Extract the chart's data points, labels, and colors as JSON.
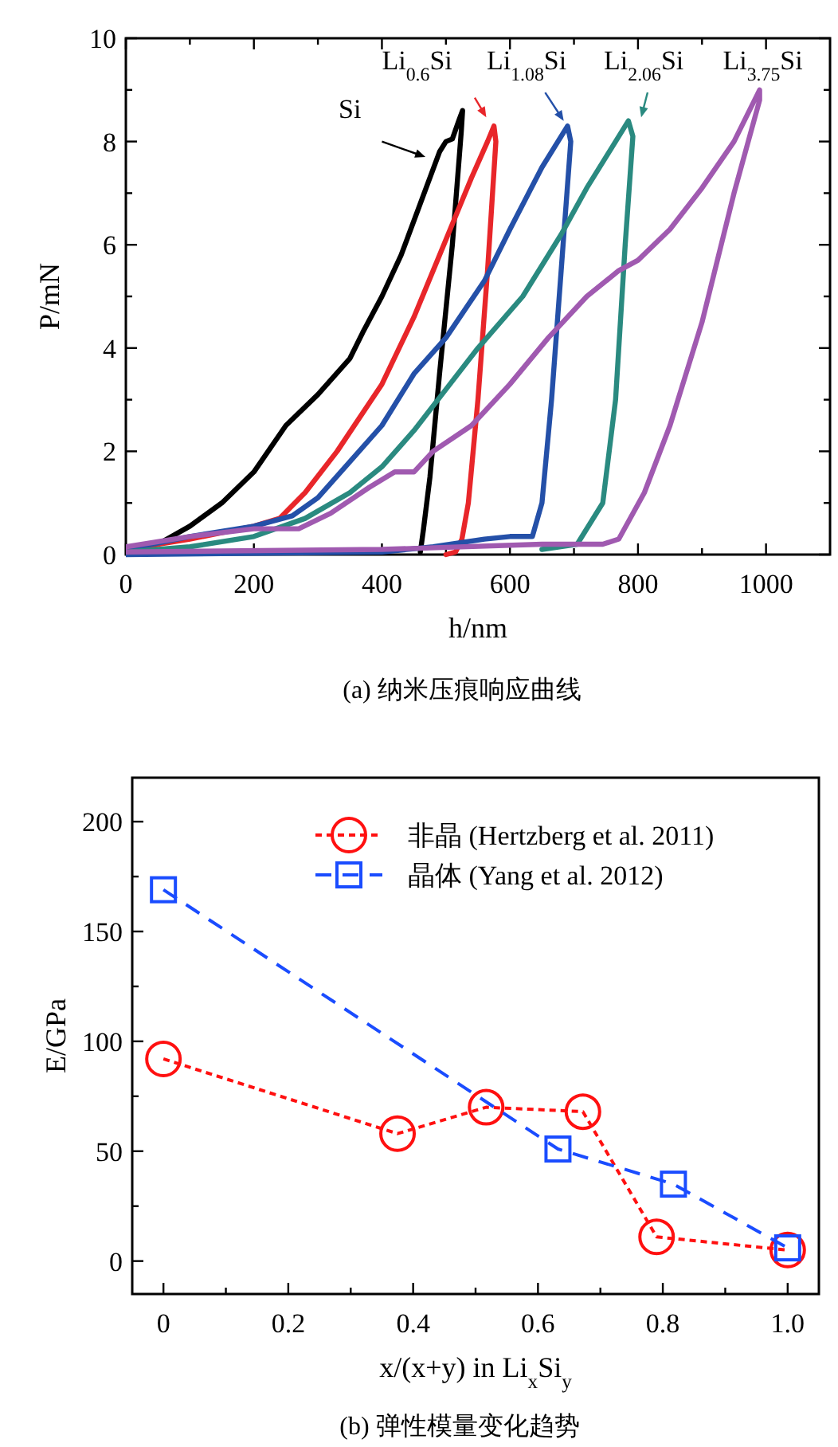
{
  "chart_data": [
    {
      "type": "line",
      "xlabel": "h/nm",
      "ylabel": "P/mN",
      "xlim": [
        0,
        1100
      ],
      "ylim": [
        0,
        10
      ],
      "xticks": [
        0,
        {
          "value": 100,
          "label": null
        },
        200,
        {
          "value": 300,
          "label": null
        },
        400,
        {
          "value": 500,
          "label": null
        },
        600,
        {
          "value": 700,
          "label": null
        },
        800,
        {
          "value": 900,
          "label": null
        },
        1000
      ],
      "yticks": [
        0,
        {
          "value": 1,
          "label": null
        },
        2,
        {
          "value": 3,
          "label": null
        },
        4,
        {
          "value": 5,
          "label": null
        },
        6,
        {
          "value": 7,
          "label": null
        },
        8,
        {
          "value": 9,
          "label": null
        },
        10
      ],
      "marker": "none",
      "line_style": "solid",
      "annotations": [
        "Si",
        "Li$_{0.6}$Si",
        "Li$_{1.08}$Si",
        "Li$_{2.06}$Si",
        "Li$_{3.75}$Si",
        "(a) 纳米压痕响应曲线"
      ],
      "series": [
        {
          "color": "#000000",
          "x": [
            0,
            50,
            100,
            150,
            200,
            250,
            300,
            350,
            370,
            400,
            430,
            460,
            490,
            500,
            510,
            520,
            526,
            524,
            510,
            490,
            475,
            465,
            460
          ],
          "values": [
            0.1,
            0.2,
            0.55,
            1.0,
            1.6,
            2.5,
            3.1,
            3.8,
            4.3,
            5.0,
            5.8,
            6.8,
            7.8,
            8.0,
            8.05,
            8.4,
            8.6,
            8.2,
            6.0,
            3.5,
            1.5,
            0.5,
            0.05
          ]
        },
        {
          "color": "#e8262a",
          "x": [
            0,
            100,
            200,
            240,
            280,
            330,
            400,
            450,
            500,
            540,
            565,
            575,
            578,
            565,
            550,
            535,
            525,
            515,
            500
          ],
          "values": [
            0.1,
            0.3,
            0.55,
            0.7,
            1.2,
            2.0,
            3.3,
            4.6,
            6.1,
            7.3,
            8.0,
            8.3,
            8.0,
            5.5,
            3.0,
            1.0,
            0.3,
            0.05,
            0
          ]
        },
        {
          "color": "#2450a8",
          "x": [
            0,
            100,
            200,
            260,
            300,
            350,
            400,
            450,
            500,
            560,
            600,
            650,
            690,
            695,
            680,
            665,
            650,
            635,
            600,
            560,
            480,
            400,
            0
          ],
          "values": [
            0.1,
            0.35,
            0.55,
            0.75,
            1.1,
            1.8,
            2.5,
            3.5,
            4.2,
            5.3,
            6.3,
            7.5,
            8.3,
            8.0,
            5.5,
            3.0,
            1.0,
            0.35,
            0.35,
            0.3,
            0.15,
            0.05,
            0
          ]
        },
        {
          "color": "#2a8a80",
          "x": [
            0,
            100,
            200,
            280,
            350,
            400,
            450,
            500,
            550,
            620,
            680,
            720,
            760,
            785,
            792,
            780,
            765,
            745,
            705,
            650
          ],
          "values": [
            0.05,
            0.15,
            0.35,
            0.7,
            1.2,
            1.7,
            2.4,
            3.2,
            4.0,
            5.0,
            6.2,
            7.1,
            7.9,
            8.4,
            8.1,
            6.0,
            3.0,
            1.0,
            0.2,
            0.1
          ]
        },
        {
          "color": "#a05ab0",
          "x": [
            0,
            100,
            200,
            270,
            320,
            380,
            420,
            450,
            480,
            540,
            600,
            660,
            720,
            770,
            800,
            850,
            900,
            950,
            990,
            990,
            950,
            900,
            850,
            810,
            770,
            745,
            650,
            400,
            0
          ],
          "values": [
            0.15,
            0.35,
            0.5,
            0.5,
            0.8,
            1.3,
            1.6,
            1.6,
            2.0,
            2.5,
            3.3,
            4.2,
            5.0,
            5.5,
            5.7,
            6.3,
            7.1,
            8.0,
            9.0,
            8.8,
            7.0,
            4.5,
            2.5,
            1.2,
            0.3,
            0.2,
            0.2,
            0.1,
            0.05
          ]
        }
      ]
    },
    {
      "type": "line",
      "xlabel": "x/(x+y) in Li$_{x}$Si$_{y}$",
      "ylabel": "E/GPa",
      "xlim": [
        -0.05,
        1.05
      ],
      "ylim": [
        -15,
        220
      ],
      "xticks": [
        0,
        {
          "value": 0.1,
          "label": null
        },
        0.2,
        {
          "value": 0.3,
          "label": null
        },
        0.4,
        {
          "value": 0.5,
          "label": null
        },
        0.6,
        {
          "value": 0.7,
          "label": null
        },
        0.8,
        {
          "value": 0.9,
          "label": null
        },
        {
          "value": 1,
          "label": "1.0"
        }
      ],
      "yticks": [
        0,
        {
          "value": 25,
          "label": null
        },
        50,
        {
          "value": 75,
          "label": null
        },
        100,
        {
          "value": 125,
          "label": null
        },
        150,
        {
          "value": 175,
          "label": null
        },
        200
      ],
      "legend": "top right",
      "annotations": [
        "(b) 弹性模量变化趋势"
      ],
      "series": [
        {
          "name": "非晶 (Hertzberg et al. 2011)",
          "color": "#ff1010",
          "marker": "circle",
          "line_style": "dotted",
          "x": [
            0,
            0.375,
            0.517,
            0.672,
            0.79,
            1.0
          ],
          "values": [
            92,
            58,
            70,
            68,
            11,
            5
          ]
        },
        {
          "name": "晶体 (Yang et al. 2012)",
          "color": "#1a4cff",
          "marker": "square",
          "line_style": "dashed",
          "x": [
            0,
            0.632,
            0.817,
            1.0
          ],
          "values": [
            169,
            51,
            35,
            6
          ]
        }
      ]
    }
  ]
}
